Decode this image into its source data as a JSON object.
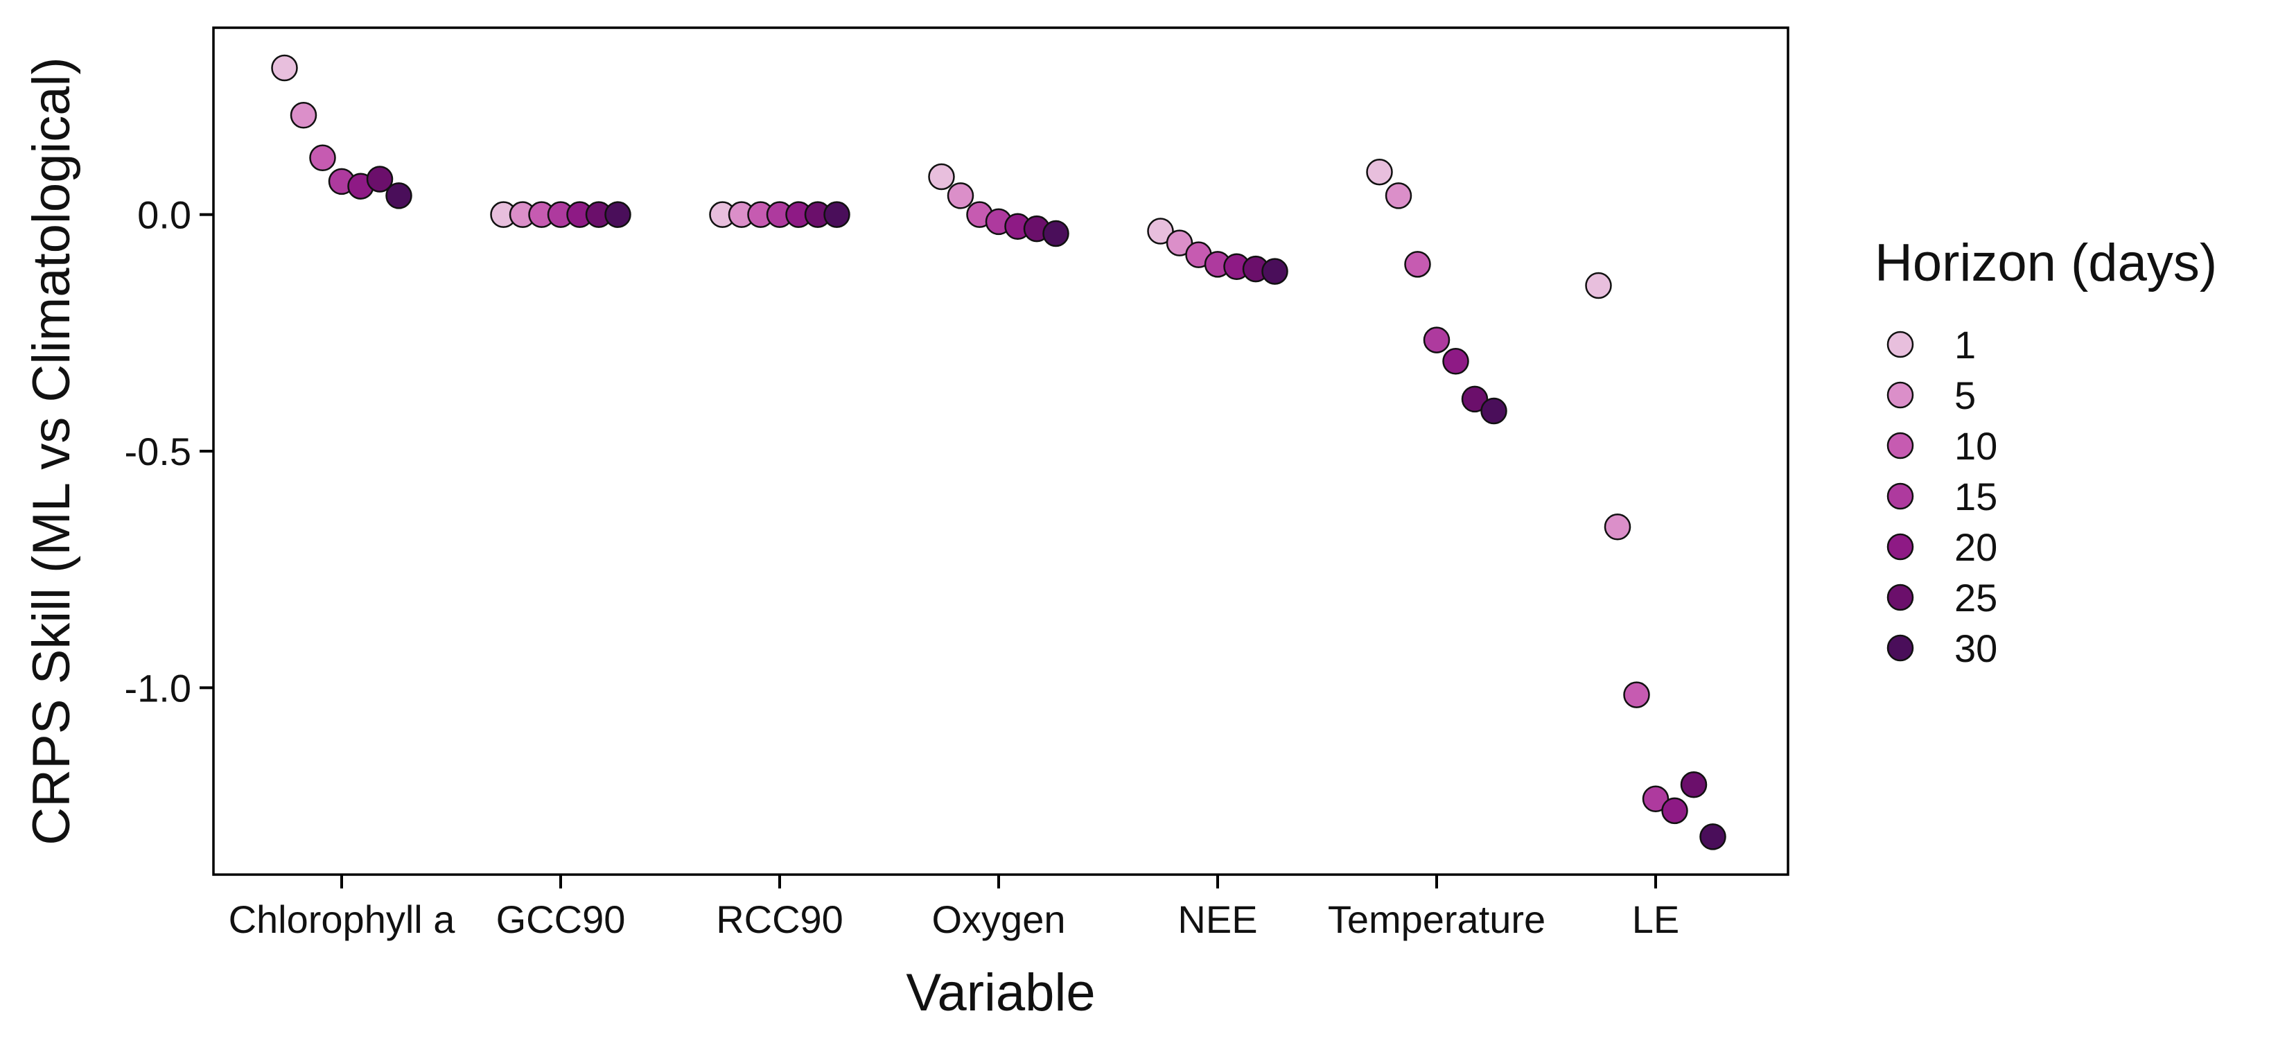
{
  "chart_data": {
    "type": "scatter",
    "xlabel": "Variable",
    "ylabel": "CRPS Skill (ML vs Climatological)",
    "categories": [
      "Chlorophyll a",
      "GCC90",
      "RCC90",
      "Oxygen",
      "NEE",
      "Temperature",
      "LE"
    ],
    "yticks": [
      0.0,
      -0.5,
      -1.0
    ],
    "ytick_labels": [
      "0.0",
      "-0.5",
      "-1.0"
    ],
    "ylim": [
      -1.395,
      0.395
    ],
    "grid": false,
    "legend": {
      "title": "Horizon (days)",
      "placement": "right",
      "entries": [
        "1",
        "5",
        "10",
        "15",
        "20",
        "25",
        "30"
      ]
    },
    "horizons": [
      1,
      5,
      10,
      15,
      20,
      25,
      30
    ],
    "colors": [
      "#E8BFDD",
      "#DB8FC9",
      "#C65BB1",
      "#AE3A9E",
      "#8E1A85",
      "#6B0F6B",
      "#4A0E5A"
    ],
    "series": [
      {
        "name": "1",
        "values": [
          0.31,
          0.0,
          0.0,
          0.08,
          -0.035,
          0.09,
          -0.15
        ]
      },
      {
        "name": "5",
        "values": [
          0.21,
          0.0,
          0.0,
          0.04,
          -0.06,
          0.04,
          -0.66
        ]
      },
      {
        "name": "10",
        "values": [
          0.12,
          0.0,
          0.0,
          0.0,
          -0.085,
          -0.105,
          -1.015
        ]
      },
      {
        "name": "15",
        "values": [
          0.07,
          0.0,
          0.0,
          -0.015,
          -0.105,
          -0.265,
          -1.235
        ]
      },
      {
        "name": "20",
        "values": [
          0.06,
          0.0,
          0.0,
          -0.025,
          -0.11,
          -0.31,
          -1.26
        ]
      },
      {
        "name": "25",
        "values": [
          0.075,
          0.0,
          0.0,
          -0.03,
          -0.115,
          -0.39,
          -1.205
        ]
      },
      {
        "name": "30",
        "values": [
          0.04,
          0.0,
          0.0,
          -0.04,
          -0.12,
          -0.415,
          -1.315
        ]
      }
    ]
  }
}
